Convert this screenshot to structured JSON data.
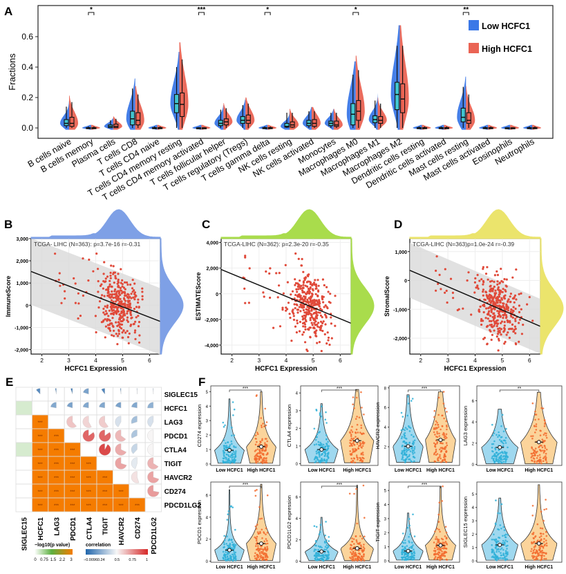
{
  "colors": {
    "low": "#3b78e7",
    "high": "#ea6454",
    "low_box": "#41c4cf",
    "scatter": "#e04a3a",
    "orange": "#f57c00",
    "violin_low": "#9fd8ef",
    "violin_high": "#fbd49b",
    "point_low": "#2fb0d8",
    "point_high": "#f26b2e"
  },
  "chart_data": [
    {
      "panel": "A",
      "type": "violin",
      "ylabel": "Fractions",
      "yticks": [
        0.0,
        0.2,
        0.4,
        0.6
      ],
      "ylim": [
        -0.07,
        0.78
      ],
      "legend": [
        {
          "name": "Low HCFC1",
          "color": "#3b78e7"
        },
        {
          "name": "High HCFC1",
          "color": "#ea6454"
        }
      ],
      "legend_position": "top-right",
      "categories": [
        "B cells naive",
        "B cells memory",
        "Plasma cells",
        "T cells CD8",
        "T cells CD4 naive",
        "T cells CD4 memory resting",
        "T cells CD4 memory activated",
        "T cells follicular helper",
        "T cells regulatory (Tregs)",
        "T cells gamma delta",
        "NK cells resting",
        "NK cells activated",
        "Monocytes",
        "Macrophages M0",
        "Macrophages M1",
        "Macrophages M2",
        "Dendritic cells resting",
        "Dendritic cells activated",
        "Mast cells resting",
        "Mast cells activated",
        "Eosinophils",
        "Neutrophils"
      ],
      "series": [
        {
          "name": "Low HCFC1",
          "q1_median_q3_max": [
            [
              0.015,
              0.03,
              0.055,
              0.14
            ],
            [
              0,
              0,
              0.002,
              0.01
            ],
            [
              0.002,
              0.01,
              0.02,
              0.05
            ],
            [
              0.02,
              0.06,
              0.11,
              0.26
            ],
            [
              0,
              0,
              0.002,
              0.01
            ],
            [
              0.1,
              0.16,
              0.22,
              0.4
            ],
            [
              0,
              0,
              0.001,
              0.005
            ],
            [
              0.015,
              0.03,
              0.05,
              0.12
            ],
            [
              0.03,
              0.05,
              0.075,
              0.15
            ],
            [
              0,
              0,
              0.002,
              0.01
            ],
            [
              0.005,
              0.01,
              0.03,
              0.1
            ],
            [
              0.015,
              0.03,
              0.05,
              0.11
            ],
            [
              0.015,
              0.03,
              0.045,
              0.1
            ],
            [
              0.02,
              0.09,
              0.16,
              0.35
            ],
            [
              0.035,
              0.055,
              0.08,
              0.18
            ],
            [
              0.12,
              0.22,
              0.3,
              0.54
            ],
            [
              0,
              0,
              0.002,
              0.01
            ],
            [
              0,
              0,
              0.002,
              0.01
            ],
            [
              0.04,
              0.07,
              0.13,
              0.27
            ],
            [
              0,
              0,
              0.002,
              0.01
            ],
            [
              0,
              0,
              0.001,
              0.005
            ],
            [
              0,
              0,
              0.002,
              0.01
            ]
          ]
        },
        {
          "name": "High HCFC1",
          "q1_median_q3_max": [
            [
              0.01,
              0.03,
              0.07,
              0.17
            ],
            [
              0,
              0,
              0.002,
              0.01
            ],
            [
              0.002,
              0.01,
              0.025,
              0.06
            ],
            [
              0.02,
              0.05,
              0.1,
              0.22
            ],
            [
              0,
              0,
              0.002,
              0.01
            ],
            [
              0.075,
              0.155,
              0.23,
              0.45
            ],
            [
              0,
              0,
              0.001,
              0.005
            ],
            [
              0.02,
              0.04,
              0.06,
              0.13
            ],
            [
              0.03,
              0.05,
              0.085,
              0.16
            ],
            [
              0,
              0,
              0.002,
              0.01
            ],
            [
              0.005,
              0.02,
              0.04,
              0.1
            ],
            [
              0.01,
              0.03,
              0.055,
              0.11
            ],
            [
              0.01,
              0.02,
              0.045,
              0.1
            ],
            [
              0.05,
              0.11,
              0.18,
              0.38
            ],
            [
              0.03,
              0.05,
              0.075,
              0.16
            ],
            [
              0.1,
              0.19,
              0.29,
              0.54
            ],
            [
              0,
              0,
              0.002,
              0.01
            ],
            [
              0,
              0,
              0.002,
              0.01
            ],
            [
              0.03,
              0.05,
              0.1,
              0.22
            ],
            [
              0,
              0,
              0.002,
              0.01
            ],
            [
              0,
              0,
              0.001,
              0.005
            ],
            [
              0,
              0,
              0.002,
              0.01
            ]
          ]
        }
      ],
      "significance": [
        {
          "category": "B cells memory",
          "label": "*"
        },
        {
          "category": "T cells CD4 memory activated",
          "label": "***"
        },
        {
          "category": "T cells gamma delta",
          "label": "*"
        },
        {
          "category": "Macrophages M0",
          "label": "*"
        },
        {
          "category": "Mast cells resting",
          "label": "**"
        }
      ]
    },
    {
      "panel": "B",
      "type": "scatter",
      "annotation": "TCGA- LIHC (N=363): p=3.7e-16 r=-0.31",
      "xlabel": "HCFC1 Expression",
      "ylabel": "ImmuneScore",
      "xticks": [
        2,
        3,
        4,
        5,
        6
      ],
      "yticks": [
        -2000,
        -1000,
        0,
        1000,
        2000,
        3000
      ],
      "ytick_labels": [
        "-2,000",
        "-1,000",
        "0",
        "1,000",
        "2,000",
        "3,000"
      ],
      "xlim": [
        1.6,
        6.4
      ],
      "ylim": [
        -2200,
        3000
      ],
      "n": 363,
      "r": -0.31,
      "fit_line": [
        [
          1.6,
          1520
        ],
        [
          6.4,
          -730
        ]
      ],
      "confidence_band": 1500,
      "marginal_color": "#7ea0e6"
    },
    {
      "panel": "C",
      "type": "scatter",
      "annotation": "TCGA-LIHC (N=362): p=2.3e-20 r=-0.35",
      "xlabel": "HCFC1 Expression",
      "ylabel": "ESTIMATEScore",
      "xticks": [
        2,
        3,
        4,
        5,
        6
      ],
      "yticks": [
        -4000,
        -2000,
        0,
        2000,
        4000
      ],
      "ytick_labels": [
        "-4,000",
        "-2,000",
        "0",
        "2,000",
        "4,000"
      ],
      "xlim": [
        1.6,
        6.4
      ],
      "ylim": [
        -4700,
        4300
      ],
      "n": 362,
      "r": -0.35,
      "fit_line": [
        [
          1.6,
          1890
        ],
        [
          6.4,
          -2300
        ]
      ],
      "confidence_band": 0,
      "marginal_color": "#a9dc4c"
    },
    {
      "panel": "D",
      "type": "scatter",
      "annotation": "TCGA-LIHC (N=363)p=1.0e-24 r=-0.39",
      "xlabel": "HCFC1 Expression",
      "ylabel": "StromalScore",
      "xticks": [
        2,
        3,
        4,
        5,
        6
      ],
      "yticks": [
        -2000,
        -1000,
        0,
        1000
      ],
      "ytick_labels": [
        "-2,000",
        "-1,000",
        "0",
        "1,000"
      ],
      "xlim": [
        1.6,
        6.4
      ],
      "ylim": [
        -2550,
        1450
      ],
      "n": 363,
      "r": -0.39,
      "fit_line": [
        [
          1.6,
          350
        ],
        [
          6.4,
          -1590
        ]
      ],
      "confidence_band": 950,
      "marginal_color": "#ebe46c"
    },
    {
      "panel": "E",
      "type": "heatmap",
      "genes": [
        "SIGLEC15",
        "HCFC1",
        "LAG3",
        "PDCD1",
        "CTLA4",
        "TIGIT",
        "HAVCR2",
        "CD274",
        "PDCD1LG2"
      ],
      "lower_triangle": "-log10(p value)",
      "lower_label": "***",
      "siglec15_neglog10p": [
        null,
        1.0,
        0,
        0,
        1.0,
        0,
        0,
        0,
        0
      ],
      "upper_triangle_correlation": [
        [
          null,
          0.12,
          0.03,
          0.05,
          0.2,
          0.1,
          0.02,
          0.01,
          0.01
        ],
        [
          null,
          null,
          0.22,
          0.2,
          0.22,
          0.22,
          0.2,
          0.22,
          0.25
        ],
        [
          null,
          null,
          null,
          0.62,
          0.58,
          0.6,
          0.42,
          0.3,
          0.42
        ],
        [
          null,
          null,
          null,
          null,
          0.85,
          0.85,
          0.65,
          0.32,
          0.5
        ],
        [
          null,
          null,
          null,
          null,
          null,
          0.92,
          0.68,
          0.38,
          0.5
        ],
        [
          null,
          null,
          null,
          null,
          null,
          null,
          0.7,
          0.45,
          0.66
        ],
        [
          null,
          null,
          null,
          null,
          null,
          null,
          null,
          0.55,
          0.7
        ],
        [
          null,
          null,
          null,
          null,
          null,
          null,
          null,
          null,
          0.72
        ]
      ],
      "legend_p": {
        "title": "−log10(p value)",
        "ticks": [
          "0",
          "0.75",
          "1.5",
          "2.2",
          "3"
        ]
      },
      "legend_corr": {
        "title": "correlation",
        "ticks": [
          "−0.0096",
          "0.24",
          "0.5",
          "0.75",
          "1"
        ]
      }
    },
    {
      "panel": "F",
      "type": "violin",
      "groups": [
        "Low HCFC1",
        "High HCFC1"
      ],
      "plots": [
        {
          "gene": "CD274",
          "ylabel": "CD274 expression",
          "yticks": [
            0,
            1,
            2,
            3,
            4,
            5
          ],
          "ylim": [
            -0.1,
            5.4
          ],
          "median": [
            0.95,
            1.2
          ],
          "max": [
            4.5,
            5.0
          ],
          "sig": "***"
        },
        {
          "gene": "CTLA4",
          "ylabel": "CTLA4 expression",
          "yticks": [
            0,
            1,
            2,
            3,
            4
          ],
          "ylim": [
            -0.1,
            4.4
          ],
          "median": [
            0.8,
            1.3
          ],
          "max": [
            3.4,
            4.2
          ],
          "sig": "***"
        },
        {
          "gene": "HAVCR2",
          "ylabel": "HAVCR2 expression",
          "yticks": [
            2,
            4,
            6,
            8
          ],
          "ylim": [
            0.1,
            8.2
          ],
          "median": [
            2.05,
            2.7
          ],
          "max": [
            7.3,
            7.6
          ],
          "sig": "***"
        },
        {
          "gene": "LAG3",
          "ylabel": "LAG3 expression",
          "yticks": [
            0,
            2,
            4,
            6
          ],
          "ylim": [
            -0.1,
            7.4
          ],
          "median": [
            1.6,
            2.1
          ],
          "max": [
            5.2,
            6.8
          ],
          "sig": "**"
        },
        {
          "gene": "PDCD1",
          "ylabel": "PDCD1 expression",
          "yticks": [
            0,
            2,
            4,
            6
          ],
          "ylim": [
            -0.1,
            7.2
          ],
          "median": [
            1.0,
            1.6
          ],
          "max": [
            6.5,
            7.0
          ],
          "sig": "***"
        },
        {
          "gene": "PDCD1LG2",
          "ylabel": "PDCD1LG2 expression",
          "yticks": [
            0,
            2,
            4,
            6
          ],
          "ylim": [
            -0.1,
            7.4
          ],
          "median": [
            0.9,
            1.2
          ],
          "max": [
            4.1,
            7.1
          ],
          "sig": "***"
        },
        {
          "gene": "TIGIT",
          "ylabel": "TIGIT expression",
          "yticks": [
            0,
            1,
            2,
            3,
            4,
            5
          ],
          "ylim": [
            -0.1,
            5.6
          ],
          "median": [
            0.7,
            1.1
          ],
          "max": [
            3.4,
            5.3
          ],
          "sig": "***"
        },
        {
          "gene": "SIGLEC15",
          "ylabel": "SIGLEC15 expression",
          "yticks": [
            0,
            1,
            2,
            3,
            4,
            5
          ],
          "ylim": [
            -0.1,
            5.9
          ],
          "median": [
            1.2,
            1.3
          ],
          "max": [
            4.7,
            5.7
          ],
          "sig": ""
        }
      ]
    }
  ],
  "panel_letters": [
    "A",
    "B",
    "C",
    "D",
    "E",
    "F"
  ]
}
